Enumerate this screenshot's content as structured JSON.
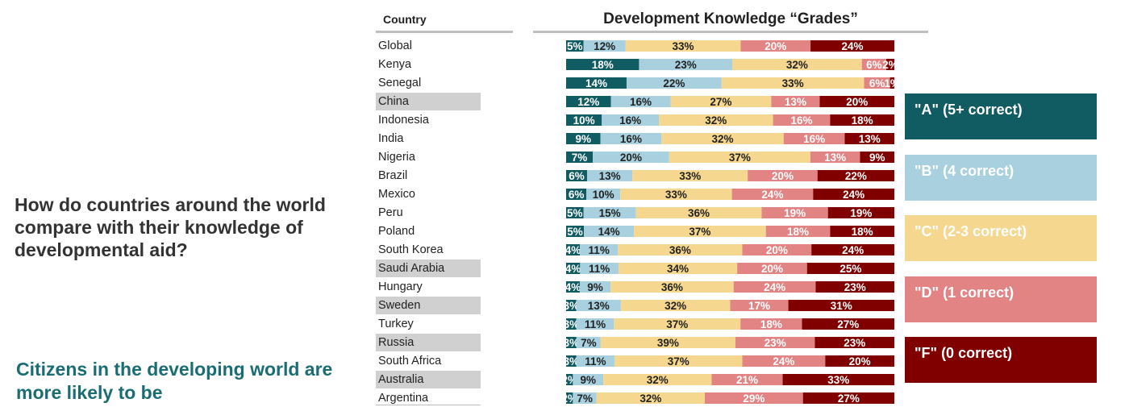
{
  "question": "How do countries around the world compare with their knowledge of developmental aid?",
  "subheading": "Citizens in the developing world are more likely to be",
  "colors": {
    "A": "#115b63",
    "B": "#a8d0df",
    "C": "#f6d78f",
    "D": "#e28384",
    "F": "#800000"
  },
  "chart_data": {
    "type": "bar",
    "orientation": "horizontal",
    "stacked": true,
    "normalized": true,
    "title": "Development Knowledge “Grades”",
    "category_header": "Country",
    "xlim": [
      0,
      100
    ],
    "categories": [
      "Global",
      "Kenya",
      "Senegal",
      "China",
      "Indonesia",
      "India",
      "Nigeria",
      "Brazil",
      "Mexico",
      "Peru",
      "Poland",
      "South Korea",
      "Saudi Arabia",
      "Hungary",
      "Sweden",
      "Turkey",
      "Russia",
      "South Africa",
      "Australia",
      "Argentina"
    ],
    "highlighted": [
      "China",
      "Saudi Arabia",
      "Sweden",
      "Russia",
      "Australia"
    ],
    "series": [
      {
        "name": "\"A\" (5+ correct)",
        "values": [
          5,
          18,
          14,
          12,
          10,
          9,
          7,
          6,
          6,
          5,
          5,
          4,
          4,
          4,
          3,
          3,
          3,
          3,
          2,
          2
        ]
      },
      {
        "name": "\"B\" (4 correct)",
        "values": [
          12,
          23,
          22,
          16,
          16,
          16,
          20,
          13,
          10,
          15,
          14,
          11,
          11,
          9,
          13,
          11,
          7,
          11,
          9,
          7
        ]
      },
      {
        "name": "\"C\" (2-3 correct)",
        "values": [
          33,
          32,
          33,
          27,
          32,
          32,
          37,
          33,
          33,
          36,
          37,
          36,
          34,
          36,
          32,
          37,
          39,
          37,
          32,
          32
        ]
      },
      {
        "name": "\"D\" (1 correct)",
        "values": [
          20,
          6,
          6,
          13,
          16,
          16,
          13,
          20,
          24,
          19,
          18,
          20,
          20,
          24,
          17,
          18,
          23,
          24,
          21,
          29
        ]
      },
      {
        "name": "\"F\" (0 correct)",
        "values": [
          24,
          2,
          1,
          20,
          18,
          13,
          9,
          22,
          24,
          19,
          18,
          24,
          25,
          23,
          31,
          27,
          23,
          20,
          33,
          27
        ]
      }
    ],
    "labels": [
      [
        "5%",
        "12%",
        "33%",
        "20%",
        "24%"
      ],
      [
        "18%",
        "23%",
        "32%",
        "6%",
        "2%"
      ],
      [
        "14%",
        "22%",
        "33%",
        "6%",
        "1%"
      ],
      [
        "12%",
        "16%",
        "27%",
        "13%",
        "20%"
      ],
      [
        "10%",
        "16%",
        "32%",
        "16%",
        "18%"
      ],
      [
        "9%",
        "16%",
        "32%",
        "16%",
        "13%"
      ],
      [
        "7%",
        "20%",
        "37%",
        "13%",
        "9%"
      ],
      [
        "6%",
        "13%",
        "33%",
        "20%",
        "22%"
      ],
      [
        "6%",
        "10%",
        "33%",
        "24%",
        "24%"
      ],
      [
        "5%",
        "15%",
        "36%",
        "19%",
        "19%"
      ],
      [
        "5%",
        "14%",
        "37%",
        "18%",
        "18%"
      ],
      [
        "4%",
        "11%",
        "36%",
        "20%",
        "24%"
      ],
      [
        "4%",
        "11%",
        "34%",
        "20%",
        "25%"
      ],
      [
        "4%",
        "9%",
        "36%",
        "24%",
        "23%"
      ],
      [
        "3%",
        "13%",
        "32%",
        "17%",
        "31%"
      ],
      [
        "3%",
        "11%",
        "37%",
        "18%",
        "27%"
      ],
      [
        "3%",
        "7%",
        "39%",
        "23%",
        "23%"
      ],
      [
        "3%",
        "11%",
        "37%",
        "24%",
        "20%"
      ],
      [
        "2%",
        "9%",
        "32%",
        "21%",
        "33%"
      ],
      [
        "2%",
        "7%",
        "32%",
        "29%",
        "27%"
      ]
    ],
    "legend_position": "right",
    "legend": [
      {
        "key": "A",
        "label": "\"A\" (5+ correct)"
      },
      {
        "key": "B",
        "label": "\"B\" (4 correct)"
      },
      {
        "key": "C",
        "label": "\"C\" (2-3 correct)"
      },
      {
        "key": "D",
        "label": "\"D\" (1 correct)"
      },
      {
        "key": "F",
        "label": "\"F\" (0 correct)"
      }
    ]
  }
}
